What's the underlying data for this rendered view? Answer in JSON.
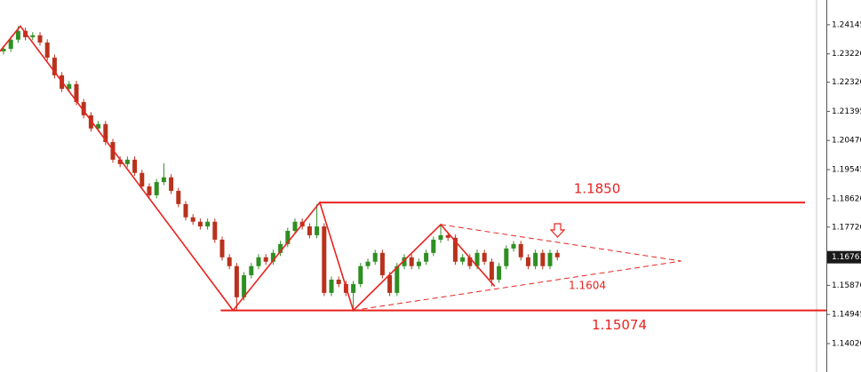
{
  "chart_data": {
    "type": "candlestick",
    "up_color": "#2e8f22",
    "down_color": "#b8321c",
    "line_color": "#e8231f",
    "open": [
      1.233,
      1.2338,
      1.2367,
      1.2395,
      1.2375,
      1.2381,
      1.2358,
      1.231,
      1.2254,
      1.2211,
      1.2226,
      1.2169,
      1.2127,
      1.2085,
      1.2099,
      1.2042,
      1.1986,
      1.1972,
      1.1986,
      1.1944,
      1.1901,
      1.1873,
      1.1915,
      1.193,
      1.1887,
      1.1845,
      1.1803,
      1.1789,
      1.1774,
      1.1789,
      1.1732,
      1.1676,
      1.1648,
      1.1549,
      1.1619,
      1.1648,
      1.1676,
      1.1662,
      1.169,
      1.1718,
      1.176,
      1.1789,
      1.1774,
      1.1746,
      1.1774,
      1.1563,
      1.1605,
      1.1591,
      1.1563,
      1.1591,
      1.1648,
      1.1662,
      1.169,
      1.1619,
      1.1563,
      1.1648,
      1.1676,
      1.1648,
      1.1662,
      1.169,
      1.1732,
      1.1746,
      1.1738,
      1.1662,
      1.1676,
      1.1648,
      1.169,
      1.1662,
      1.1605,
      1.1648,
      1.1704,
      1.1718,
      1.1676,
      1.1648,
      1.169,
      1.1648,
      1.169
    ],
    "high": [
      1.2348,
      1.2377,
      1.241,
      1.2405,
      1.2391,
      1.2391,
      1.2368,
      1.232,
      1.2264,
      1.2236,
      1.2236,
      1.2179,
      1.2137,
      1.2109,
      1.2109,
      1.2052,
      1.1996,
      1.1996,
      1.1996,
      1.1954,
      1.1911,
      1.1925,
      1.1975,
      1.194,
      1.1897,
      1.1855,
      1.1813,
      1.1799,
      1.1799,
      1.1799,
      1.1742,
      1.1686,
      1.1658,
      1.1629,
      1.1658,
      1.1686,
      1.1686,
      1.17,
      1.1728,
      1.177,
      1.1799,
      1.1799,
      1.1784,
      1.1845,
      1.1784,
      1.1615,
      1.1615,
      1.1601,
      1.1601,
      1.1658,
      1.1672,
      1.17,
      1.17,
      1.1629,
      1.1658,
      1.1686,
      1.1686,
      1.1672,
      1.17,
      1.1742,
      1.178,
      1.1756,
      1.1748,
      1.1686,
      1.1686,
      1.17,
      1.17,
      1.1672,
      1.1658,
      1.1714,
      1.1728,
      1.1728,
      1.1686,
      1.17,
      1.17,
      1.17,
      1.17
    ],
    "low": [
      1.232,
      1.2328,
      1.2357,
      1.2365,
      1.2365,
      1.2348,
      1.23,
      1.2244,
      1.2201,
      1.2201,
      1.2159,
      1.2117,
      1.2075,
      1.2075,
      1.2032,
      1.1976,
      1.1962,
      1.1962,
      1.1934,
      1.1891,
      1.1863,
      1.1863,
      1.1905,
      1.1877,
      1.1835,
      1.1793,
      1.1779,
      1.1764,
      1.1764,
      1.1722,
      1.1666,
      1.1638,
      1.1507,
      1.1539,
      1.1609,
      1.1638,
      1.1652,
      1.1652,
      1.168,
      1.1708,
      1.175,
      1.1764,
      1.1736,
      1.1736,
      1.1553,
      1.1553,
      1.1581,
      1.1553,
      1.1507,
      1.1581,
      1.1638,
      1.1652,
      1.1609,
      1.1553,
      1.1553,
      1.1638,
      1.1638,
      1.1638,
      1.1652,
      1.168,
      1.1722,
      1.1728,
      1.1652,
      1.1652,
      1.1638,
      1.1638,
      1.1652,
      1.1584,
      1.1595,
      1.1638,
      1.1694,
      1.1666,
      1.1638,
      1.1638,
      1.1638,
      1.1638,
      1.1666
    ],
    "close": [
      1.2338,
      1.2367,
      1.2395,
      1.2375,
      1.2381,
      1.2358,
      1.231,
      1.2254,
      1.2211,
      1.2226,
      1.2169,
      1.2127,
      1.2085,
      1.2099,
      1.2042,
      1.1986,
      1.1972,
      1.1986,
      1.1944,
      1.1901,
      1.1873,
      1.1915,
      1.193,
      1.1887,
      1.1845,
      1.1803,
      1.1789,
      1.1774,
      1.1789,
      1.1732,
      1.1676,
      1.1648,
      1.1549,
      1.1619,
      1.1648,
      1.1676,
      1.1662,
      1.169,
      1.1718,
      1.176,
      1.1789,
      1.1774,
      1.1746,
      1.1774,
      1.1563,
      1.1605,
      1.1591,
      1.1563,
      1.1591,
      1.1648,
      1.1662,
      1.169,
      1.1619,
      1.1563,
      1.1648,
      1.1676,
      1.1648,
      1.1662,
      1.169,
      1.1732,
      1.1746,
      1.1738,
      1.1662,
      1.1676,
      1.1648,
      1.169,
      1.1662,
      1.1605,
      1.1648,
      1.1704,
      1.1718,
      1.1676,
      1.1648,
      1.169,
      1.1648,
      1.169,
      1.1676
    ],
    "ylim": [
      1.13118,
      1.2493
    ],
    "yticks": [
      1.24145,
      {
        "value": 1.2322,
        "label": "1.23220"
      },
      {
        "value": 1.2232,
        "label": "1.22320"
      },
      1.21395,
      {
        "value": 1.2047,
        "label": "1.20470"
      },
      1.19545,
      {
        "value": 1.1862,
        "label": "1.18620"
      },
      {
        "value": 1.1772,
        "label": "1.17720"
      },
      {
        "value": 1.1587,
        "label": "1.15870"
      },
      1.14945,
      {
        "value": 1.1402,
        "label": "1.14020"
      }
    ],
    "current_price": 1.16763,
    "levels": [
      {
        "value": 1.185,
        "label": "1.1850",
        "x": [
          43.4,
          110
        ]
      },
      {
        "value": 1.15074,
        "label": "1.15074",
        "x": [
          29.8,
          113
        ]
      }
    ],
    "zigzag": {
      "x": [
        -0.5,
        2.3,
        31.5,
        43.4,
        48,
        60,
        67.4
      ],
      "y": [
        1.233,
        1.241,
        1.15074,
        1.185,
        1.15074,
        1.178,
        1.1584
      ]
    },
    "triangle": {
      "upper": {
        "x": [
          60,
          93
        ],
        "y": [
          1.178,
          1.1664
        ]
      },
      "lower": {
        "x": [
          48,
          93
        ],
        "y": [
          1.15074,
          1.1664
        ]
      },
      "label": "1.1604"
    }
  }
}
